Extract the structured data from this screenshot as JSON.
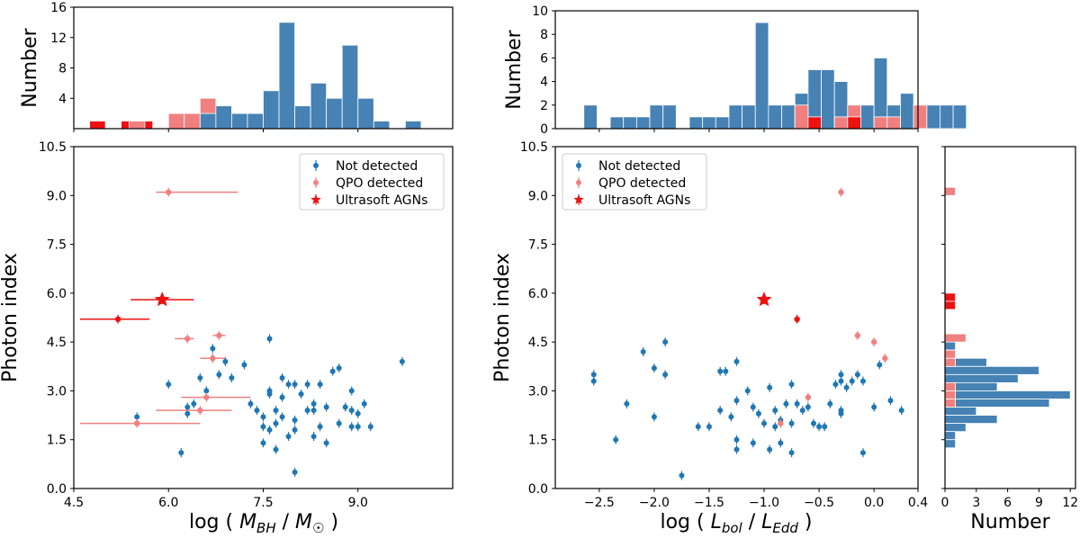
{
  "chart_data": [
    {
      "type": "bar",
      "panel": "top-left histogram",
      "ylabel": "Number",
      "xlim": [
        4.5,
        10.5
      ],
      "ylim": [
        0,
        16
      ],
      "yticks": [
        4,
        8,
        12,
        16
      ],
      "bin_width": 0.25,
      "series": [
        {
          "name": "Ultrasoft AGNs",
          "color": "#ee1111",
          "bars": [
            [
              4.875,
              1
            ],
            [
              5.375,
              1
            ],
            [
              5.625,
              1
            ]
          ]
        },
        {
          "name": "QPO detected",
          "color": "#f08080",
          "bars": [
            [
              5.5,
              1
            ],
            [
              6.125,
              2
            ],
            [
              6.375,
              2
            ],
            [
              6.625,
              4
            ]
          ]
        },
        {
          "name": "Not detected",
          "color": "#4682b4",
          "bars": [
            [
              6.625,
              2
            ],
            [
              6.875,
              3
            ],
            [
              7.125,
              2
            ],
            [
              7.375,
              2
            ],
            [
              7.625,
              5
            ],
            [
              7.875,
              14
            ],
            [
              8.125,
              3
            ],
            [
              8.375,
              6
            ],
            [
              8.625,
              4
            ],
            [
              8.875,
              11
            ],
            [
              9.125,
              4
            ],
            [
              9.375,
              1
            ],
            [
              9.875,
              1
            ]
          ]
        }
      ]
    },
    {
      "type": "bar",
      "panel": "top-middle histogram",
      "ylabel": "Number",
      "xlim": [
        -2.9,
        0.4
      ],
      "ylim": [
        0,
        10
      ],
      "yticks": [
        0,
        2,
        4,
        6,
        8,
        10
      ],
      "bin_width": 0.12,
      "series": [
        {
          "name": "Not detected",
          "color": "#4682b4",
          "bars": [
            [
              -2.58,
              2
            ],
            [
              -2.34,
              1
            ],
            [
              -2.22,
              1
            ],
            [
              -2.1,
              1
            ],
            [
              -1.98,
              2
            ],
            [
              -1.86,
              2
            ],
            [
              -1.62,
              1
            ],
            [
              -1.5,
              1
            ],
            [
              -1.38,
              1
            ],
            [
              -1.26,
              2
            ],
            [
              -1.14,
              2
            ],
            [
              -1.02,
              9
            ],
            [
              -0.9,
              2
            ],
            [
              -0.78,
              2
            ],
            [
              -0.66,
              3
            ],
            [
              -0.54,
              5
            ],
            [
              -0.42,
              5
            ],
            [
              -0.3,
              4
            ],
            [
              -0.18,
              2
            ],
            [
              -0.06,
              2
            ],
            [
              0.06,
              6
            ],
            [
              0.18,
              2
            ],
            [
              0.3,
              3
            ],
            [
              0.42,
              1
            ],
            [
              0.54,
              2
            ],
            [
              0.66,
              2
            ],
            [
              0.78,
              2
            ]
          ]
        },
        {
          "name": "QPO detected",
          "color": "#f08080",
          "bars": [
            [
              -0.66,
              2
            ],
            [
              -0.54,
              1
            ],
            [
              -0.3,
              1
            ],
            [
              -0.18,
              2
            ],
            [
              0.06,
              1
            ],
            [
              0.18,
              1
            ],
            [
              0.42,
              2
            ]
          ]
        },
        {
          "name": "Ultrasoft AGNs",
          "color": "#ee1111",
          "bars": [
            [
              -0.54,
              1
            ],
            [
              -0.18,
              1
            ]
          ]
        }
      ]
    },
    {
      "type": "scatter",
      "panel": "bottom-left scatter",
      "xlabel": "log ( M_BH / M_☉ )",
      "ylabel": "Photon index",
      "xlim": [
        4.5,
        10.5
      ],
      "ylim": [
        0,
        10.5
      ],
      "xticks": [
        "4.5",
        "6.0",
        "7.5",
        "9.0"
      ],
      "yticks": [
        "0.0",
        "1.5",
        "3.0",
        "4.5",
        "6.0",
        "7.5",
        "9.0",
        "10.5"
      ],
      "legend": {
        "position": "top-right",
        "entries": [
          "Not detected",
          "QPO detected",
          "Ultrasoft AGNs"
        ]
      },
      "series": [
        {
          "name": "Not detected",
          "color": "#1f77b4",
          "marker": "circle",
          "points": [
            [
              5.5,
              2.2
            ],
            [
              6.0,
              3.2
            ],
            [
              6.2,
              1.1
            ],
            [
              6.3,
              2.3
            ],
            [
              6.3,
              2.5
            ],
            [
              6.4,
              2.6
            ],
            [
              6.5,
              3.4
            ],
            [
              6.6,
              3.0
            ],
            [
              6.7,
              4.0
            ],
            [
              6.7,
              4.3
            ],
            [
              6.8,
              3.5
            ],
            [
              6.9,
              3.9
            ],
            [
              7.0,
              3.4
            ],
            [
              7.2,
              3.8
            ],
            [
              7.3,
              2.6
            ],
            [
              7.4,
              2.4
            ],
            [
              7.5,
              2.2
            ],
            [
              7.5,
              1.9
            ],
            [
              7.5,
              1.4
            ],
            [
              7.6,
              1.8
            ],
            [
              7.6,
              2.9
            ],
            [
              7.6,
              3.0
            ],
            [
              7.6,
              4.6
            ],
            [
              7.7,
              2.4
            ],
            [
              7.7,
              2.0
            ],
            [
              7.7,
              1.2
            ],
            [
              7.8,
              3.4
            ],
            [
              7.8,
              2.8
            ],
            [
              7.8,
              2.2
            ],
            [
              7.9,
              1.6
            ],
            [
              7.9,
              3.2
            ],
            [
              8.0,
              3.2
            ],
            [
              8.0,
              2.1
            ],
            [
              8.0,
              1.8
            ],
            [
              8.0,
              0.5
            ],
            [
              8.1,
              2.9
            ],
            [
              8.2,
              3.2
            ],
            [
              8.2,
              2.4
            ],
            [
              8.3,
              2.6
            ],
            [
              8.3,
              1.6
            ],
            [
              8.3,
              2.4
            ],
            [
              8.4,
              3.2
            ],
            [
              8.4,
              1.9
            ],
            [
              8.5,
              1.4
            ],
            [
              8.5,
              2.5
            ],
            [
              8.6,
              3.6
            ],
            [
              8.7,
              3.7
            ],
            [
              8.7,
              2.0
            ],
            [
              8.8,
              2.5
            ],
            [
              8.9,
              1.9
            ],
            [
              8.9,
              3.0
            ],
            [
              8.9,
              2.4
            ],
            [
              9.0,
              2.3
            ],
            [
              9.0,
              1.9
            ],
            [
              9.1,
              2.6
            ],
            [
              9.2,
              1.9
            ],
            [
              9.7,
              3.9
            ]
          ]
        },
        {
          "name": "QPO detected",
          "color": "#f08080",
          "marker": "circle",
          "points": [
            [
              5.5,
              2.0
            ],
            [
              6.0,
              9.1
            ],
            [
              6.3,
              4.6
            ],
            [
              6.5,
              2.4
            ],
            [
              6.6,
              2.8
            ],
            [
              6.7,
              4.0
            ],
            [
              6.8,
              4.7
            ]
          ]
        },
        {
          "name": "Ultrasoft AGNs",
          "color": "#ee1111",
          "marker": "star/circle",
          "points": [
            [
              5.2,
              5.2
            ],
            [
              5.9,
              5.8
            ]
          ]
        }
      ]
    },
    {
      "type": "scatter",
      "panel": "bottom-middle scatter",
      "xlabel": "log ( L_bol / L_Edd )",
      "ylabel": "Photon index",
      "xlim": [
        -2.9,
        0.4
      ],
      "ylim": [
        0,
        10.5
      ],
      "xticks": [
        "−2.5",
        "−2.0",
        "−1.5",
        "−1.0",
        "−0.5",
        "0.0",
        "0.4"
      ],
      "yticks": [
        "0.0",
        "1.5",
        "3.0",
        "4.5",
        "6.0",
        "7.5",
        "9.0",
        "10.5"
      ],
      "legend": {
        "position": "top-left",
        "entries": [
          "Not detected",
          "QPO detected",
          "Ultrasoft AGNs"
        ]
      },
      "series": [
        {
          "name": "Not detected",
          "color": "#1f77b4",
          "marker": "circle",
          "points": [
            [
              -2.55,
              3.5
            ],
            [
              -2.55,
              3.3
            ],
            [
              -2.35,
              1.5
            ],
            [
              -2.25,
              2.6
            ],
            [
              -2.1,
              4.2
            ],
            [
              -2.0,
              3.7
            ],
            [
              -2.0,
              2.2
            ],
            [
              -1.9,
              4.5
            ],
            [
              -1.9,
              3.5
            ],
            [
              -1.75,
              0.4
            ],
            [
              -1.6,
              1.9
            ],
            [
              -1.5,
              1.9
            ],
            [
              -1.4,
              2.4
            ],
            [
              -1.4,
              3.6
            ],
            [
              -1.35,
              3.6
            ],
            [
              -1.3,
              2.2
            ],
            [
              -1.25,
              3.9
            ],
            [
              -1.25,
              2.7
            ],
            [
              -1.25,
              1.5
            ],
            [
              -1.25,
              1.2
            ],
            [
              -1.15,
              3.0
            ],
            [
              -1.1,
              2.5
            ],
            [
              -1.1,
              1.4
            ],
            [
              -1.05,
              2.3
            ],
            [
              -1.0,
              2.0
            ],
            [
              -0.95,
              1.2
            ],
            [
              -0.95,
              3.1
            ],
            [
              -0.9,
              1.9
            ],
            [
              -0.9,
              2.4
            ],
            [
              -0.85,
              1.4
            ],
            [
              -0.85,
              2.1
            ],
            [
              -0.8,
              2.6
            ],
            [
              -0.75,
              2.0
            ],
            [
              -0.75,
              1.1
            ],
            [
              -0.75,
              3.2
            ],
            [
              -0.7,
              2.6
            ],
            [
              -0.65,
              2.4
            ],
            [
              -0.6,
              2.5
            ],
            [
              -0.55,
              2.0
            ],
            [
              -0.5,
              1.9
            ],
            [
              -0.45,
              1.9
            ],
            [
              -0.4,
              2.6
            ],
            [
              -0.35,
              3.2
            ],
            [
              -0.3,
              3.5
            ],
            [
              -0.3,
              3.3
            ],
            [
              -0.3,
              2.4
            ],
            [
              -0.3,
              2.3
            ],
            [
              -0.25,
              3.1
            ],
            [
              -0.2,
              3.3
            ],
            [
              -0.15,
              3.5
            ],
            [
              -0.1,
              3.3
            ],
            [
              -0.1,
              1.1
            ],
            [
              0.0,
              2.5
            ],
            [
              0.05,
              3.8
            ],
            [
              0.15,
              2.7
            ],
            [
              0.25,
              2.4
            ]
          ]
        },
        {
          "name": "QPO detected",
          "color": "#f08080",
          "marker": "circle",
          "points": [
            [
              -0.3,
              9.1
            ],
            [
              -0.85,
              2.0
            ],
            [
              -0.6,
              2.8
            ],
            [
              -0.15,
              4.7
            ],
            [
              0.0,
              4.5
            ],
            [
              0.1,
              4.0
            ]
          ]
        },
        {
          "name": "Ultrasoft AGNs",
          "color": "#ee1111",
          "marker": "star/circle",
          "points": [
            [
              -1.0,
              5.8
            ],
            [
              -0.7,
              5.2
            ]
          ]
        }
      ]
    },
    {
      "type": "bar",
      "orientation": "horizontal",
      "panel": "right histogram",
      "xlabel": "Number",
      "xlim": [
        0,
        12.5
      ],
      "ylim": [
        0,
        10.5
      ],
      "xticks": [
        "0",
        "3",
        "6",
        "9",
        "12"
      ],
      "bin_width": 0.25,
      "series": [
        {
          "name": "Not detected",
          "color": "#4682b4",
          "bars": [
            [
              4.375,
              1
            ],
            [
              4.125,
              1
            ],
            [
              3.875,
              4
            ],
            [
              3.625,
              9
            ],
            [
              3.375,
              7
            ],
            [
              3.125,
              5
            ],
            [
              2.875,
              12
            ],
            [
              2.625,
              10
            ],
            [
              2.375,
              3
            ],
            [
              2.125,
              5
            ],
            [
              1.875,
              2
            ],
            [
              1.625,
              1
            ],
            [
              1.375,
              1
            ]
          ]
        },
        {
          "name": "QPO detected",
          "color": "#f08080",
          "bars": [
            [
              9.125,
              1
            ],
            [
              4.625,
              2
            ],
            [
              4.125,
              1
            ],
            [
              3.875,
              1
            ],
            [
              3.125,
              1
            ],
            [
              2.875,
              1
            ],
            [
              2.625,
              1
            ]
          ]
        },
        {
          "name": "Ultrasoft AGNs",
          "color": "#ee1111",
          "bars": [
            [
              5.875,
              1
            ],
            [
              5.625,
              1
            ]
          ]
        }
      ]
    }
  ]
}
